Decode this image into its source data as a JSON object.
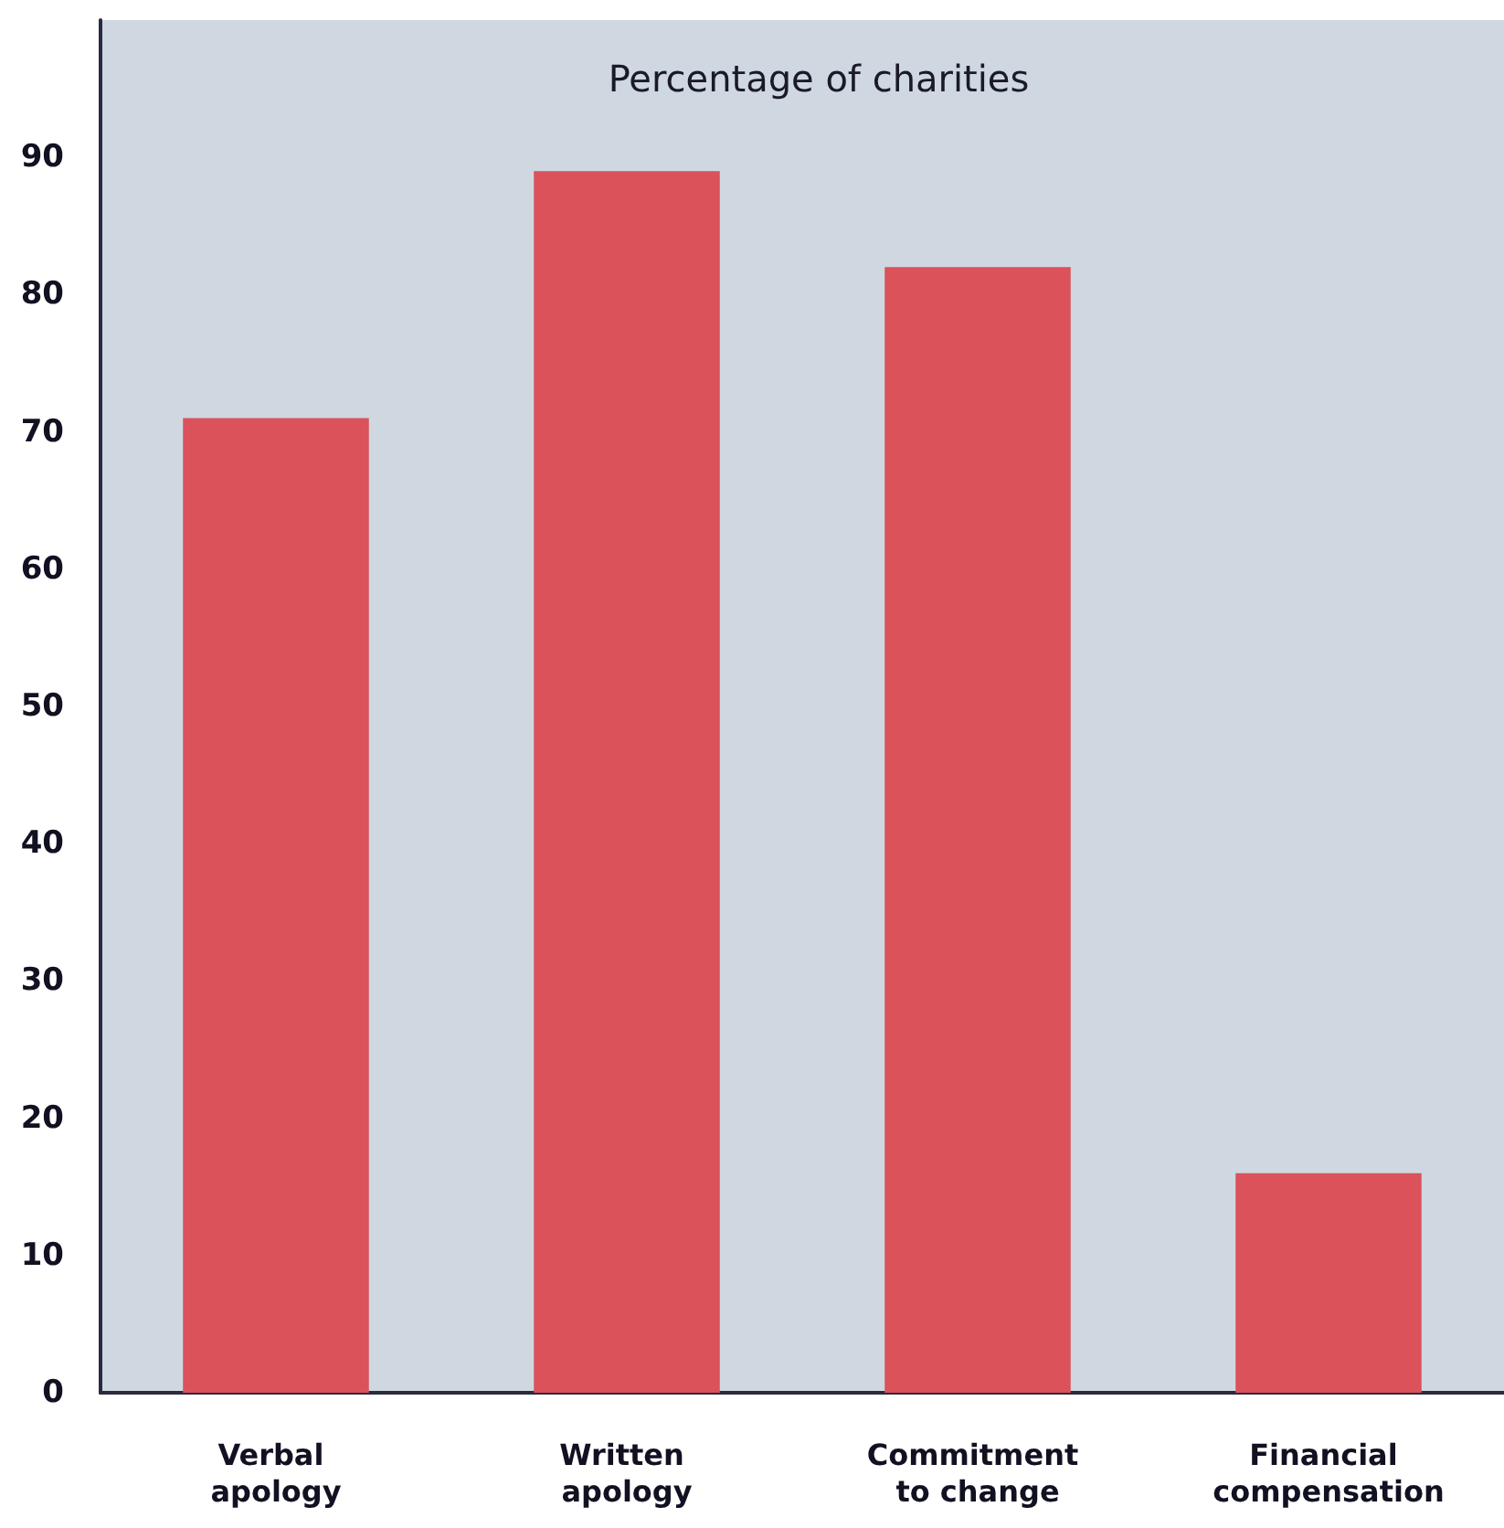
{
  "chart_data": {
    "type": "bar",
    "title": "Percentage of charities",
    "categories": [
      "Verbal apology",
      "Written apology",
      "Commitment to change",
      "Financial compensation"
    ],
    "values": [
      71,
      89,
      82,
      16
    ],
    "color": "#db525a",
    "ylim": [
      0,
      100
    ],
    "yticks": [
      0,
      10,
      20,
      30,
      40,
      50,
      60,
      70,
      80,
      90
    ],
    "grid": false
  }
}
